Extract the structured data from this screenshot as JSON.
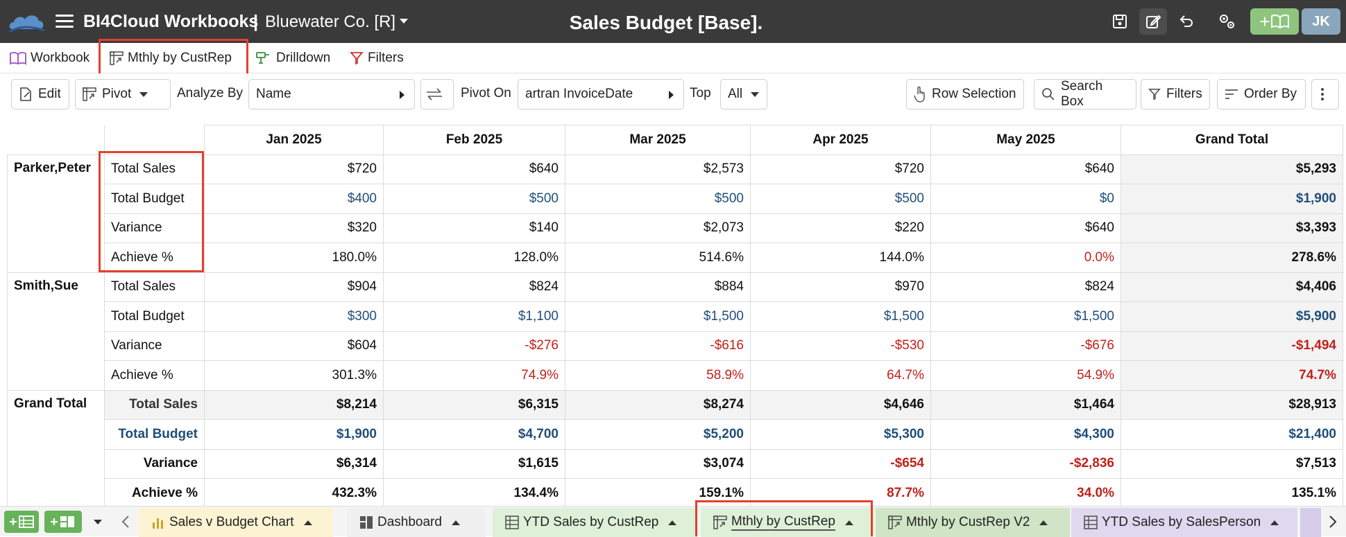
{
  "app": {
    "name": "BI4Cloud Workbooks",
    "separator": "|",
    "company": "Bluewater Co. [R]",
    "title": "Sales Budget [Base].",
    "avatar_initials": "JK",
    "add_label": "+"
  },
  "viewtabs": [
    {
      "label": "Workbook",
      "icon": "book-icon"
    },
    {
      "label": "Mthly by CustRep",
      "icon": "pivot-icon"
    },
    {
      "label": "Drilldown",
      "icon": "drill-icon"
    },
    {
      "label": "Filters",
      "icon": "filter-icon"
    }
  ],
  "toolbar": {
    "edit": "Edit",
    "pivot": "Pivot",
    "analyze_label": "Analyze By",
    "analyze_value": "Name",
    "pivot_on_label": "Pivot On",
    "pivot_on_value": "artran InvoiceDate",
    "top_label": "Top",
    "top_value": "All",
    "row_selection": "Row Selection",
    "search_box": "Search Box",
    "filters": "Filters",
    "order_by": "Order By"
  },
  "grid": {
    "columns": [
      "Jan 2025",
      "Feb 2025",
      "Mar 2025",
      "Apr 2025",
      "May 2025",
      "Grand Total"
    ],
    "groups": [
      {
        "name": "Parker,Peter",
        "rows": [
          {
            "metric": "Total Sales",
            "values": [
              "$720",
              "$640",
              "$2,573",
              "$720",
              "$640",
              "$5,293"
            ]
          },
          {
            "metric": "Total Budget",
            "values": [
              "$400",
              "$500",
              "$500",
              "$500",
              "$0",
              "$1,900"
            ]
          },
          {
            "metric": "Variance",
            "values": [
              "$320",
              "$140",
              "$2,073",
              "$220",
              "$640",
              "$3,393"
            ]
          },
          {
            "metric": "Achieve %",
            "values": [
              "180.0%",
              "128.0%",
              "514.6%",
              "144.0%",
              "0.0%",
              "278.6%"
            ]
          }
        ]
      },
      {
        "name": "Smith,Sue",
        "rows": [
          {
            "metric": "Total Sales",
            "values": [
              "$904",
              "$824",
              "$884",
              "$970",
              "$824",
              "$4,406"
            ]
          },
          {
            "metric": "Total Budget",
            "values": [
              "$300",
              "$1,100",
              "$1,500",
              "$1,500",
              "$1,500",
              "$5,900"
            ]
          },
          {
            "metric": "Variance",
            "values": [
              "$604",
              "-$276",
              "-$616",
              "-$530",
              "-$676",
              "-$1,494"
            ]
          },
          {
            "metric": "Achieve %",
            "values": [
              "301.3%",
              "74.9%",
              "58.9%",
              "64.7%",
              "54.9%",
              "74.7%"
            ]
          }
        ]
      },
      {
        "name": "Grand Total",
        "rows": [
          {
            "metric": "Total Sales",
            "values": [
              "$8,214",
              "$6,315",
              "$8,274",
              "$4,646",
              "$1,464",
              "$28,913"
            ]
          },
          {
            "metric": "Total Budget",
            "values": [
              "$1,900",
              "$4,700",
              "$5,200",
              "$5,300",
              "$4,300",
              "$21,400"
            ]
          },
          {
            "metric": "Variance",
            "values": [
              "$6,314",
              "$1,615",
              "$3,074",
              "-$654",
              "-$2,836",
              "$7,513"
            ]
          },
          {
            "metric": "Achieve %",
            "values": [
              "432.3%",
              "134.4%",
              "159.1%",
              "87.7%",
              "34.0%",
              "135.1%"
            ]
          }
        ]
      }
    ]
  },
  "sheet_tabs": [
    {
      "label": "Sales v Budget Chart",
      "color": "#fcf3d3",
      "icon": "bar-chart-icon"
    },
    {
      "label": "Dashboard",
      "color": "#f0f0f0",
      "icon": "dashboard-icon"
    },
    {
      "label": "YTD Sales by CustRep",
      "color": "#dff0d8",
      "icon": "table-icon"
    },
    {
      "label": "Mthly by CustRep",
      "color": "#dff0d8",
      "icon": "pivot-icon"
    },
    {
      "label": "Mthly by CustRep V2",
      "color": "#cfe5c5",
      "icon": "pivot-icon"
    },
    {
      "label": "YTD Sales by SalesPerson",
      "color": "#dfd8ef",
      "icon": "table-icon"
    }
  ],
  "colors": {
    "topbar": "#3a3a3a",
    "budget_blue": "#1f4e79",
    "negative_red": "#c0211b",
    "highlight_red": "#e2412f",
    "add_green": "#8fc47f"
  }
}
